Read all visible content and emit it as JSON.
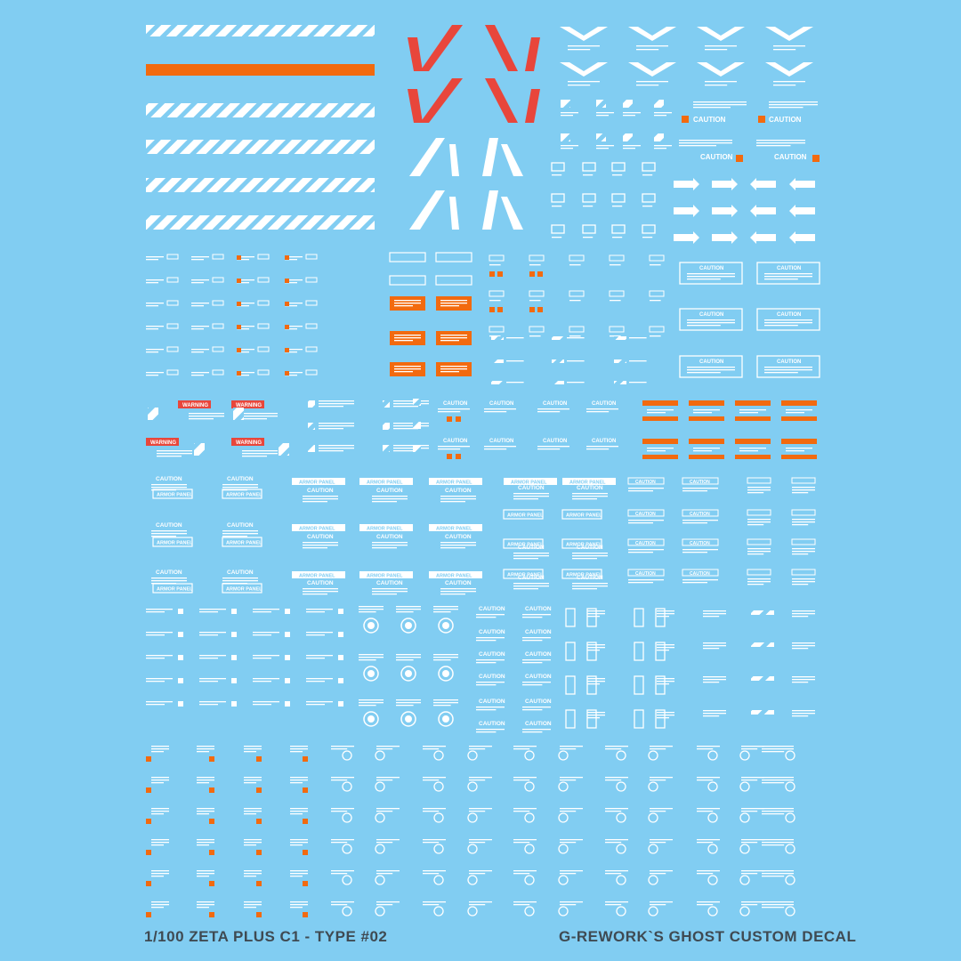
{
  "footer": {
    "left": "1/100 ZETA PLUS C1 - TYPE #02",
    "right": "G-REWORK`S GHOST CUSTOM DECAL"
  },
  "labels": {
    "caution": "CAUTION",
    "warning": "WARNING",
    "rescue": "RESCUE",
    "armor_panel": "ARMOR PANEL"
  },
  "colors": {
    "background": "#81cdf2",
    "decal_white": "#ffffff",
    "decal_orange": "#f26a0f",
    "decal_red": "#e8463b",
    "footer_text": "#3f4a52"
  }
}
